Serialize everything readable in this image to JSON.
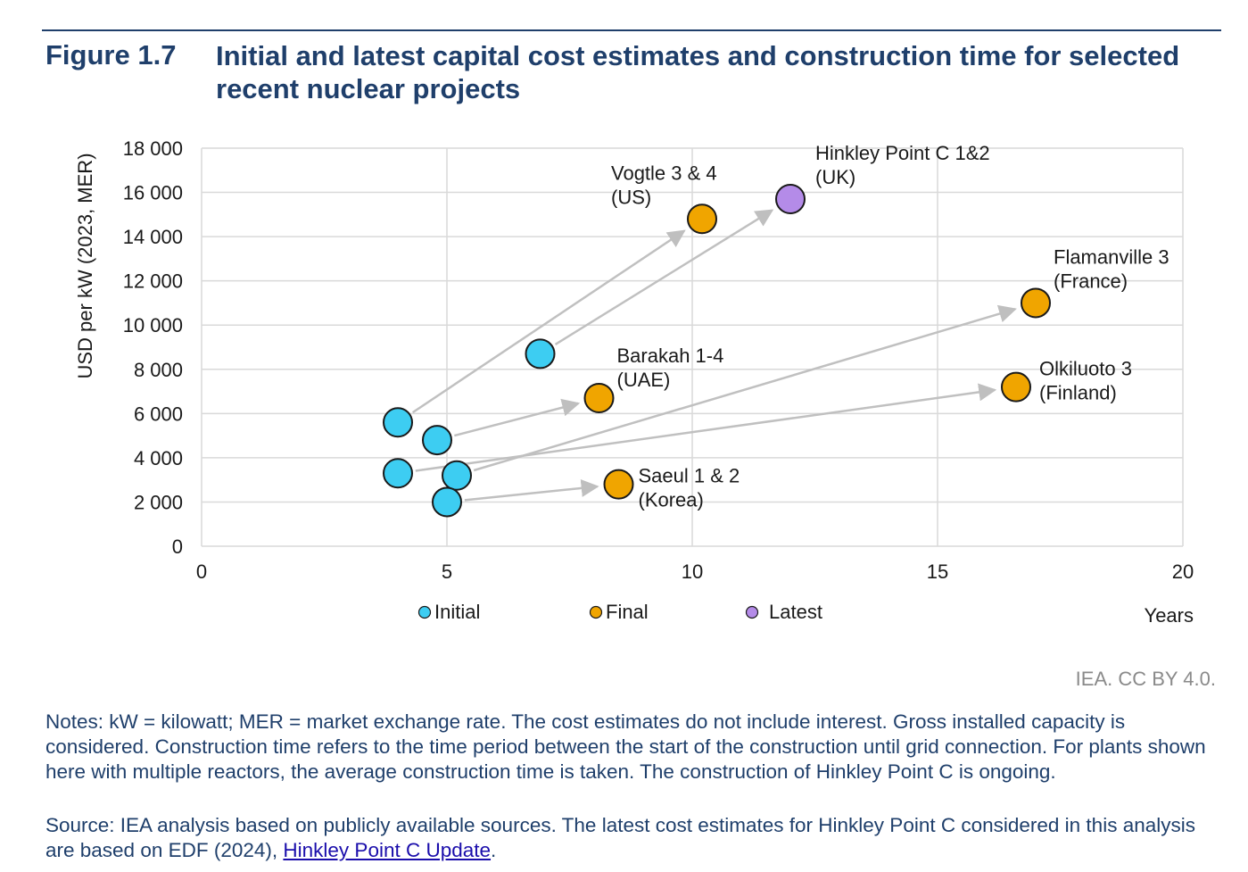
{
  "header": {
    "figure_number": "Figure 1.7",
    "title": "Initial and latest capital cost estimates and construction time for selected recent nuclear projects"
  },
  "chart_data": {
    "type": "scatter",
    "ylabel": "USD per kW (2023, MER)",
    "xlabel": "Years",
    "xlim": [
      0,
      20
    ],
    "ylim": [
      0,
      18000
    ],
    "x_ticks": [
      "0",
      "5",
      "10",
      "15",
      "20"
    ],
    "y_ticks": [
      "0",
      "2 000",
      "4 000",
      "6 000",
      "8 000",
      "10 000",
      "12 000",
      "14 000",
      "16 000",
      "18 000"
    ],
    "grid": true,
    "legend_position": "bottom",
    "legend": [
      {
        "name": "Initial",
        "color": "#3dcdf2"
      },
      {
        "name": "Final",
        "color": "#f0a500"
      },
      {
        "name": "Latest",
        "color": "#b48be8"
      }
    ],
    "projects": [
      {
        "label": [
          "Vogtle 3 & 4",
          "(US)"
        ],
        "initial": {
          "x": 4.0,
          "y": 5600
        },
        "final": {
          "x": 10.2,
          "y": 14800
        },
        "final_type": "Final"
      },
      {
        "label": [
          "Hinkley Point C 1&2",
          "(UK)"
        ],
        "initial": {
          "x": 6.9,
          "y": 8700
        },
        "final": {
          "x": 12.0,
          "y": 15700
        },
        "final_type": "Latest"
      },
      {
        "label": [
          "Barakah 1-4",
          "(UAE)"
        ],
        "initial": {
          "x": 4.8,
          "y": 4800
        },
        "final": {
          "x": 8.1,
          "y": 6700
        },
        "final_type": "Final"
      },
      {
        "label": [
          "Flamanville 3",
          "(France)"
        ],
        "initial": {
          "x": 5.2,
          "y": 3200
        },
        "final": {
          "x": 17.0,
          "y": 11000
        },
        "final_type": "Final"
      },
      {
        "label": [
          "Olkiluoto 3",
          "(Finland)"
        ],
        "initial": {
          "x": 4.0,
          "y": 3300
        },
        "final": {
          "x": 16.6,
          "y": 7200
        },
        "final_type": "Final"
      },
      {
        "label": [
          "Saeul 1 & 2",
          "(Korea)"
        ],
        "initial": {
          "x": 5.0,
          "y": 2000
        },
        "final": {
          "x": 8.5,
          "y": 2800
        },
        "final_type": "Final"
      }
    ]
  },
  "footer": {
    "credit": "IEA. CC BY 4.0.",
    "notes": "Notes: kW = kilowatt; MER = market exchange rate. The cost estimates do not include interest. Gross installed capacity is considered. Construction time refers to the time period between the start of the construction until grid connection. For plants shown here with multiple reactors, the average construction time is taken. The construction of Hinkley Point C is ongoing.",
    "source_prefix": "Source: IEA analysis based on publicly available sources. The latest cost estimates for Hinkley Point C considered in this analysis are based on EDF (2024), ",
    "source_link": "Hinkley Point C Update",
    "source_suffix": "."
  }
}
